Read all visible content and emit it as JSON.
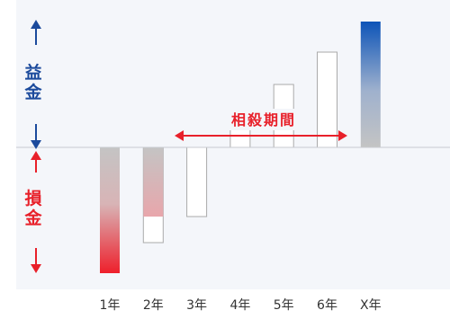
{
  "side_labels": {
    "profit": [
      "益",
      "金"
    ],
    "loss": [
      "損",
      "金"
    ]
  },
  "annotation": "相殺期間",
  "colors": {
    "profit": "#1b4a9c",
    "loss": "#e8202a",
    "neutral_gray": "#bdbdbd",
    "outline": "#aaaaaa"
  },
  "chart_data": {
    "type": "bar",
    "categories": [
      "1年",
      "2年",
      "3年",
      "4年",
      "5年",
      "6年",
      "X年"
    ],
    "series": [
      {
        "values": [
          -140,
          -77,
          -77,
          20,
          70,
          106,
          140
        ],
        "style": [
          "gradient-loss",
          "gradient-loss",
          "outline",
          "outline",
          "outline",
          "outline",
          "gradient-profit"
        ]
      }
    ],
    "overlay": [
      {
        "category": "2年",
        "outline_value": -106
      }
    ],
    "annotations": [
      {
        "text": "相殺期間",
        "from": "3年",
        "to": "6年",
        "type": "double-arrow"
      }
    ],
    "ylim": [
      -140,
      140
    ],
    "title": "",
    "xlabel": "",
    "ylabel": ""
  }
}
